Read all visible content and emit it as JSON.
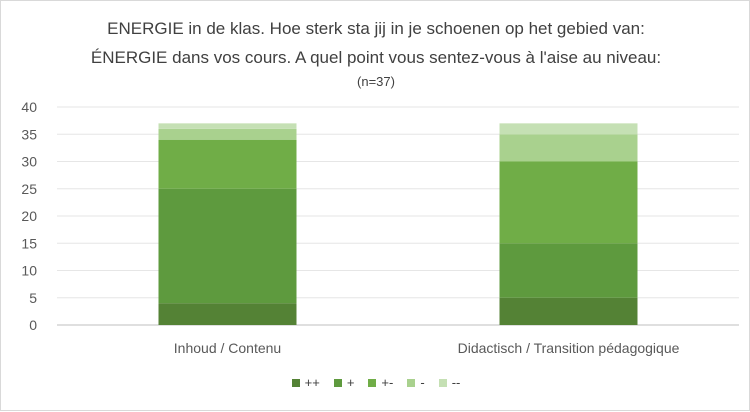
{
  "chart_data": {
    "type": "bar",
    "stacked": true,
    "title_line1": "ENERGIE in de klas. Hoe sterk sta jij in je schoenen op het gebied van:",
    "title_line2": "ÉNERGIE dans vos cours. A quel point vous sentez-vous à l'aise au niveau:",
    "subtitle": "(n=37)",
    "categories": [
      "Inhoud / Contenu",
      "Didactisch / Transition pédagogique"
    ],
    "ylim": [
      0,
      40
    ],
    "yticks": [
      0,
      5,
      10,
      15,
      20,
      25,
      30,
      35,
      40
    ],
    "grid": true,
    "legend_position": "bottom",
    "series": [
      {
        "name": "++",
        "values": [
          4,
          5
        ],
        "color": "#548235"
      },
      {
        "name": "+",
        "values": [
          21,
          10
        ],
        "color": "#5e9a3e"
      },
      {
        "name": "+-",
        "values": [
          9,
          15
        ],
        "color": "#70ad47"
      },
      {
        "name": "-",
        "values": [
          2,
          5
        ],
        "color": "#a9d18e"
      },
      {
        "name": "--",
        "values": [
          1,
          2
        ],
        "color": "#c5e0b4"
      }
    ]
  }
}
